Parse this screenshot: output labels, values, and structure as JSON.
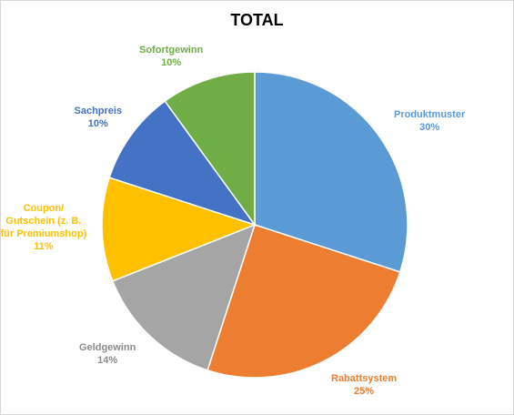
{
  "chart_data": {
    "type": "pie",
    "title": "TOTAL",
    "slices": [
      {
        "name": "Produktmuster",
        "value": 30,
        "label": "30%",
        "color": "#5B9BD5"
      },
      {
        "name": "Rabattsystem",
        "value": 25,
        "label": "25%",
        "color": "#ED7D31"
      },
      {
        "name": "Geldgewinn",
        "value": 14,
        "label": "14%",
        "color": "#A5A5A5"
      },
      {
        "name": "Coupon/\nGutschein (z. B.\nfür Premiumshop)",
        "value": 11,
        "label": "11%",
        "color": "#FFC000"
      },
      {
        "name": "Sachpreis",
        "value": 10,
        "label": "10%",
        "color": "#4472C4"
      },
      {
        "name": "Sofortgewinn",
        "value": 10,
        "label": "10%",
        "color": "#70AD47"
      }
    ],
    "start_angle": "12 o'clock",
    "direction": "clockwise",
    "legend": "none",
    "data_labels": "outside"
  }
}
